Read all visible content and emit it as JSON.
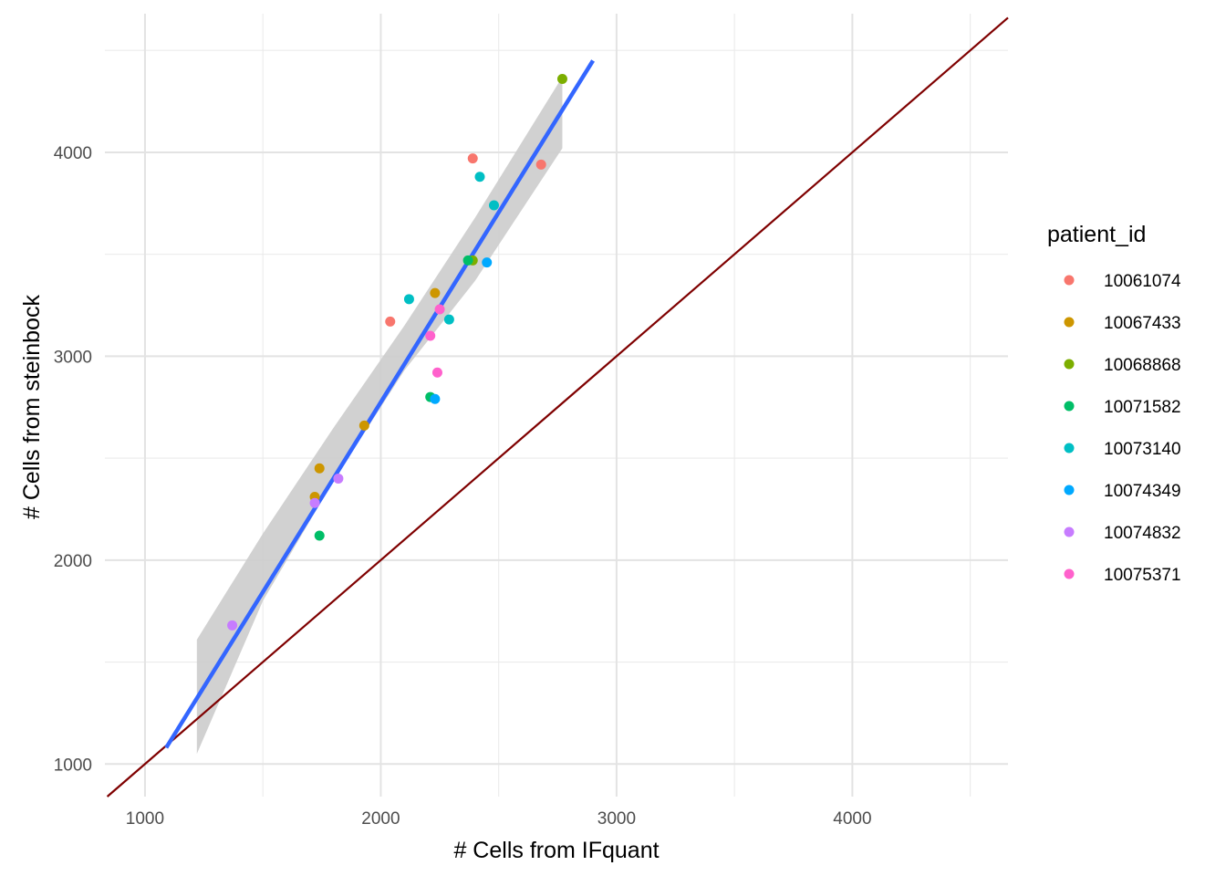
{
  "chart_data": {
    "type": "scatter",
    "xlabel": "# Cells from IFquant",
    "ylabel": "# Cells from steinbock",
    "xlim": [
      830,
      4660
    ],
    "ylim": [
      840,
      4680
    ],
    "x_ticks": [
      1000,
      2000,
      3000,
      4000
    ],
    "y_ticks": [
      1000,
      2000,
      3000,
      4000
    ],
    "grid": true,
    "legend": {
      "title": "patient_id",
      "position": "right"
    },
    "series": [
      {
        "name": "10061074",
        "color": "#F8766D",
        "points": [
          [
            2040,
            3170
          ],
          [
            2390,
            3970
          ],
          [
            2680,
            3940
          ]
        ]
      },
      {
        "name": "10067433",
        "color": "#CD9600",
        "points": [
          [
            1720,
            2310
          ],
          [
            1740,
            2450
          ],
          [
            1930,
            2660
          ],
          [
            2230,
            3310
          ]
        ]
      },
      {
        "name": "10068868",
        "color": "#7CAE00",
        "points": [
          [
            2390,
            3470
          ],
          [
            2770,
            4360
          ]
        ]
      },
      {
        "name": "10071582",
        "color": "#00BE67",
        "points": [
          [
            1740,
            2120
          ],
          [
            2210,
            2800
          ],
          [
            2370,
            3470
          ]
        ]
      },
      {
        "name": "10073140",
        "color": "#00BFC4",
        "points": [
          [
            2120,
            3280
          ],
          [
            2290,
            3180
          ],
          [
            2420,
            3880
          ],
          [
            2480,
            3740
          ]
        ]
      },
      {
        "name": "10074349",
        "color": "#00A9FF",
        "points": [
          [
            2230,
            2790
          ],
          [
            2450,
            3460
          ]
        ]
      },
      {
        "name": "10074832",
        "color": "#C77CFF",
        "points": [
          [
            1370,
            1680
          ],
          [
            1720,
            2280
          ],
          [
            1820,
            2400
          ]
        ]
      },
      {
        "name": "10075371",
        "color": "#FF61CC",
        "points": [
          [
            2210,
            3100
          ],
          [
            2240,
            2920
          ],
          [
            2250,
            3230
          ]
        ]
      }
    ],
    "regression": {
      "color": "#3366FF",
      "x": [
        1090,
        2900
      ],
      "y": [
        1080,
        4450
      ],
      "ci_color": "#cccccc",
      "ci": {
        "x": [
          1220,
          1500,
          1800,
          2100,
          2400,
          2770
        ],
        "upper": [
          1610,
          2130,
          2650,
          3150,
          3680,
          4370
        ],
        "lower": [
          1050,
          1800,
          2390,
          2930,
          3370,
          4020
        ]
      }
    },
    "identity_line": {
      "color": "#7F0000",
      "slope": 1,
      "intercept": 0
    }
  }
}
